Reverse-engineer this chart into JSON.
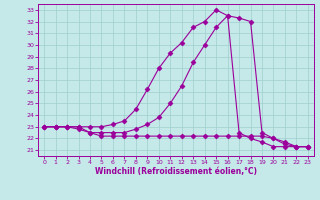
{
  "xlabel": "Windchill (Refroidissement éolien,°C)",
  "bg_color": "#c5e8e8",
  "line_color": "#9b009b",
  "grid_color": "#9fcfcf",
  "x_ticks": [
    0,
    1,
    2,
    3,
    4,
    5,
    6,
    7,
    8,
    9,
    10,
    11,
    12,
    13,
    14,
    15,
    16,
    17,
    18,
    19,
    20,
    21,
    22,
    23
  ],
  "y_ticks": [
    21,
    22,
    23,
    24,
    25,
    26,
    27,
    28,
    29,
    30,
    31,
    32,
    33
  ],
  "xlim": [
    -0.5,
    23.5
  ],
  "ylim": [
    20.5,
    33.5
  ],
  "curve1_x": [
    0,
    1,
    2,
    3,
    4,
    5,
    6,
    7,
    8,
    9,
    10,
    11,
    12,
    13,
    14,
    15,
    16,
    17,
    18,
    19,
    20,
    21,
    22,
    23
  ],
  "curve1_y": [
    23.0,
    23.0,
    23.0,
    23.0,
    22.5,
    22.2,
    22.2,
    22.2,
    22.2,
    22.2,
    22.2,
    22.2,
    22.2,
    22.2,
    22.2,
    22.2,
    22.2,
    22.2,
    22.2,
    22.2,
    22.0,
    21.5,
    21.3,
    21.3
  ],
  "curve2_x": [
    0,
    1,
    2,
    3,
    4,
    5,
    6,
    7,
    8,
    9,
    10,
    11,
    12,
    13,
    14,
    15,
    16,
    17,
    18,
    19,
    20,
    21,
    22,
    23
  ],
  "curve2_y": [
    23.0,
    23.0,
    23.0,
    22.8,
    22.5,
    22.5,
    22.5,
    22.5,
    22.8,
    23.2,
    23.8,
    25.0,
    26.5,
    28.5,
    30.0,
    31.5,
    32.5,
    32.3,
    32.0,
    22.5,
    22.0,
    21.7,
    21.3,
    21.3
  ],
  "curve3_x": [
    0,
    1,
    2,
    3,
    4,
    5,
    6,
    7,
    8,
    9,
    10,
    11,
    12,
    13,
    14,
    15,
    16,
    17,
    18,
    19,
    20,
    21,
    22,
    23
  ],
  "curve3_y": [
    23.0,
    23.0,
    23.0,
    23.0,
    23.0,
    23.0,
    23.2,
    23.5,
    24.5,
    26.2,
    28.0,
    29.3,
    30.2,
    31.5,
    32.0,
    33.0,
    32.5,
    22.5,
    22.0,
    21.7,
    21.3,
    21.3,
    21.3,
    21.3
  ]
}
